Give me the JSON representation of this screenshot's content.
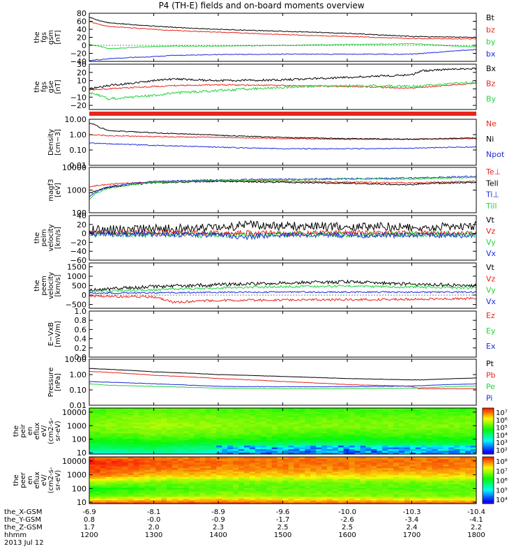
{
  "title": "P4 (TH-E) fields and on-board moments overview",
  "colors": {
    "black": "#000000",
    "red": "#e8261c",
    "green": "#22d43a",
    "blue": "#1c2bdc"
  },
  "date_label": "2013 Jul 12",
  "x_ticks": [
    "1200",
    "1300",
    "1400",
    "1500",
    "1600",
    "1700",
    "1800"
  ],
  "ephemeris": [
    {
      "label": "the_X-GSM",
      "values": [
        "-6.9",
        "-8.1",
        "-8.9",
        "-9.6",
        "-10.0",
        "-10.3",
        "-10.4"
      ]
    },
    {
      "label": "the_Y-GSM",
      "values": [
        "0.8",
        "-0.0",
        "-0.9",
        "-1.7",
        "-2.6",
        "-3.4",
        "-4.1"
      ]
    },
    {
      "label": "the_Z-GSM",
      "values": [
        "1.7",
        "2.0",
        "2.3",
        "2.5",
        "2.5",
        "2.4",
        "2.2"
      ]
    },
    {
      "label": "hhmm",
      "values": [
        "1200",
        "1300",
        "1400",
        "1500",
        "1600",
        "1700",
        "1800"
      ]
    }
  ],
  "chart_data": [
    {
      "type": "line",
      "ylabel_lines": [
        "the",
        "fgs",
        "gsm",
        "[nT]"
      ],
      "ylim": [
        -40,
        80
      ],
      "scale": "linear",
      "yticks": [
        "80",
        "60",
        "40",
        "20",
        "0",
        "−20",
        "−40"
      ],
      "ytick_vals": [
        80,
        60,
        40,
        20,
        0,
        -20,
        -40
      ],
      "series": [
        {
          "name": "Bt",
          "color": "black",
          "x": [
            1200,
            1215,
            1230,
            1300,
            1330,
            1400,
            1500,
            1600,
            1700,
            1800
          ],
          "values": [
            70,
            62,
            56,
            48,
            45,
            40,
            35,
            30,
            22,
            20
          ]
        },
        {
          "name": "bz",
          "color": "red",
          "x": [
            1200,
            1215,
            1230,
            1300,
            1330,
            1400,
            1500,
            1600,
            1700,
            1800
          ],
          "values": [
            60,
            52,
            47,
            40,
            37,
            33,
            27,
            22,
            17,
            16
          ]
        },
        {
          "name": "by",
          "color": "green",
          "x": [
            1200,
            1215,
            1230,
            1300,
            1330,
            1400,
            1500,
            1600,
            1700,
            1800
          ],
          "values": [
            2,
            -2,
            -8,
            -3,
            -2,
            -2,
            0,
            2,
            4,
            -4
          ]
        },
        {
          "name": "bx",
          "color": "blue",
          "x": [
            1200,
            1215,
            1230,
            1300,
            1330,
            1400,
            1500,
            1600,
            1700,
            1800
          ],
          "values": [
            -38,
            -36,
            -33,
            -28,
            -25,
            -23,
            -22,
            -22,
            -22,
            -10
          ]
        }
      ]
    },
    {
      "type": "line",
      "ylabel_lines": [
        "the",
        "fgs",
        "gse",
        "[nT]"
      ],
      "ylim": [
        -25,
        30
      ],
      "scale": "linear",
      "yticks": [
        "30",
        "20",
        "10",
        "0",
        "−10",
        "−20"
      ],
      "ytick_vals": [
        30,
        20,
        10,
        0,
        -10,
        -20
      ],
      "series": [
        {
          "name": "Bx",
          "color": "black",
          "x": [
            1200,
            1230,
            1300,
            1330,
            1400,
            1500,
            1600,
            1700,
            1715,
            1800
          ],
          "values": [
            0,
            4,
            10,
            12,
            10,
            11,
            14,
            17,
            22,
            25
          ]
        },
        {
          "name": "Bz",
          "color": "red",
          "x": [
            1200,
            1230,
            1300,
            1330,
            1400,
            1500,
            1600,
            1700,
            1800
          ],
          "values": [
            -1,
            0,
            3,
            4,
            5,
            4,
            3,
            1,
            7
          ]
        },
        {
          "name": "By",
          "color": "green",
          "x": [
            1200,
            1215,
            1230,
            1300,
            1330,
            1400,
            1500,
            1600,
            1700,
            1800
          ],
          "values": [
            -5,
            -8,
            -12,
            -8,
            -5,
            -2,
            2,
            4,
            3,
            8
          ]
        }
      ]
    },
    {
      "type": "line",
      "ylabel_lines": [
        "Density",
        "[cm−3]"
      ],
      "ylim": [
        0.01,
        10
      ],
      "scale": "log",
      "yticks": [
        "10.00",
        "1.00",
        "0.10",
        "0.01"
      ],
      "ytick_vals": [
        10,
        1,
        0.1,
        0.01
      ],
      "series": [
        {
          "name": "Ne",
          "color": "red",
          "x": [
            1200,
            1230,
            1300,
            1400,
            1500,
            1600,
            1700,
            1800
          ],
          "values": [
            1.0,
            0.85,
            0.75,
            0.65,
            0.55,
            0.5,
            0.5,
            0.55
          ]
        },
        {
          "name": "Ni",
          "color": "black",
          "x": [
            1200,
            1215,
            1230,
            1300,
            1400,
            1500,
            1600,
            1700,
            1800
          ],
          "values": [
            6,
            3,
            1.8,
            1.3,
            0.9,
            0.65,
            0.55,
            0.5,
            0.6
          ]
        },
        {
          "name": "Npot",
          "color": "blue",
          "x": [
            1200,
            1230,
            1300,
            1400,
            1500,
            1600,
            1700,
            1800
          ],
          "values": [
            0.28,
            0.25,
            0.2,
            0.15,
            0.12,
            0.12,
            0.13,
            0.16
          ]
        }
      ]
    },
    {
      "type": "line",
      "ylabel_lines": [
        "magf3",
        "[eV]"
      ],
      "ylim": [
        100,
        10000
      ],
      "scale": "log",
      "yticks": [
        "10000",
        "1000",
        "100"
      ],
      "ytick_vals": [
        10000,
        1000,
        100
      ],
      "series": [
        {
          "name": "Te⊥",
          "color": "red",
          "x": [
            1200,
            1230,
            1300,
            1400,
            1500,
            1600,
            1700,
            1800
          ],
          "values": [
            1400,
            1800,
            2300,
            2600,
            2500,
            2200,
            2100,
            2400
          ]
        },
        {
          "name": "Tell",
          "color": "black",
          "x": [
            1200,
            1230,
            1300,
            1400,
            1500,
            1600,
            1700,
            1715,
            1800
          ],
          "values": [
            700,
            1300,
            2100,
            2400,
            2200,
            2000,
            1700,
            1900,
            2200
          ]
        },
        {
          "name": "Ti⊥",
          "color": "blue",
          "x": [
            1200,
            1230,
            1300,
            1400,
            1500,
            1600,
            1700,
            1800
          ],
          "values": [
            500,
            1400,
            2400,
            2800,
            3000,
            3200,
            3400,
            4000
          ]
        },
        {
          "name": "Till",
          "color": "green",
          "x": [
            1200,
            1230,
            1300,
            1400,
            1500,
            1600,
            1700,
            1800
          ],
          "values": [
            400,
            1200,
            2200,
            2600,
            2800,
            3000,
            3100,
            3600
          ]
        }
      ]
    },
    {
      "type": "line",
      "ylabel_lines": [
        "the",
        "peim",
        "velocity",
        "[km/s]"
      ],
      "ylim": [
        -60,
        40
      ],
      "scale": "linear",
      "yticks": [
        "40",
        "20",
        "0",
        "−20",
        "−40",
        "−60"
      ],
      "ytick_vals": [
        40,
        20,
        0,
        -20,
        -40,
        -60
      ],
      "series": [
        {
          "name": "Vt",
          "color": "black",
          "x": [
            1200,
            1300,
            1400,
            1445,
            1500,
            1600,
            1700,
            1800
          ],
          "values": [
            8,
            10,
            12,
            20,
            16,
            16,
            14,
            16
          ]
        },
        {
          "name": "Vz",
          "color": "red",
          "x": [
            1200,
            1300,
            1400,
            1500,
            1600,
            1700,
            1800
          ],
          "values": [
            0,
            2,
            1,
            0,
            1,
            0,
            0
          ]
        },
        {
          "name": "Vy",
          "color": "green",
          "x": [
            1200,
            1300,
            1400,
            1500,
            1600,
            1700,
            1800
          ],
          "values": [
            -2,
            -3,
            -4,
            -2,
            -3,
            -2,
            -3
          ]
        },
        {
          "name": "Vx",
          "color": "blue",
          "x": [
            1200,
            1300,
            1400,
            1445,
            1500,
            1600,
            1700,
            1800
          ],
          "values": [
            -1,
            -2,
            -3,
            -8,
            -3,
            -4,
            -4,
            -5
          ]
        }
      ]
    },
    {
      "type": "line",
      "ylabel_lines": [
        "the",
        "peem",
        "velocity",
        "[km/s]"
      ],
      "ylim": [
        -700,
        1700
      ],
      "scale": "linear",
      "yticks": [
        "1500",
        "1000",
        "500",
        "0",
        "−500"
      ],
      "ytick_vals": [
        1500,
        1000,
        500,
        0,
        -500
      ],
      "series": [
        {
          "name": "Vt",
          "color": "black",
          "x": [
            1200,
            1230,
            1300,
            1400,
            1500,
            1600,
            1700,
            1800
          ],
          "values": [
            280,
            320,
            450,
            550,
            650,
            700,
            580,
            500
          ]
        },
        {
          "name": "Vz",
          "color": "red",
          "x": [
            1200,
            1300,
            1330,
            1400,
            1500,
            1600,
            1700,
            1800
          ],
          "values": [
            -60,
            -100,
            -380,
            -280,
            -260,
            -240,
            -220,
            -180
          ]
        },
        {
          "name": "Vy",
          "color": "green",
          "x": [
            1200,
            1300,
            1400,
            1500,
            1600,
            1700,
            1800
          ],
          "values": [
            180,
            280,
            380,
            450,
            480,
            420,
            380
          ]
        },
        {
          "name": "Vx",
          "color": "blue",
          "x": [
            1200,
            1300,
            1400,
            1500,
            1600,
            1700,
            1800
          ],
          "values": [
            100,
            120,
            150,
            160,
            160,
            150,
            150
          ]
        }
      ]
    },
    {
      "type": "line",
      "ylabel_lines": [
        "E−VxB",
        "[mV/m]"
      ],
      "ylim": [
        0,
        1
      ],
      "scale": "linear",
      "yticks": [
        "1.0",
        "0.8",
        "0.6",
        "0.4",
        "0.2",
        "0.0"
      ],
      "ytick_vals": [
        1,
        0.8,
        0.6,
        0.4,
        0.2,
        0
      ],
      "series": [
        {
          "name": "Ez",
          "color": "red",
          "x": [],
          "values": []
        },
        {
          "name": "Ey",
          "color": "green",
          "x": [],
          "values": []
        },
        {
          "name": "Ex",
          "color": "blue",
          "x": [],
          "values": []
        }
      ]
    },
    {
      "type": "line",
      "ylabel_lines": [
        "Pressure",
        "[nPa]"
      ],
      "ylim": [
        0.01,
        10
      ],
      "scale": "log",
      "yticks": [
        "10.00",
        "1.00",
        "0.10",
        "0.01"
      ],
      "ytick_vals": [
        10,
        1,
        0.1,
        0.01
      ],
      "series": [
        {
          "name": "Pt",
          "color": "black",
          "x": [
            1200,
            1300,
            1400,
            1500,
            1600,
            1700,
            1715,
            1800
          ],
          "values": [
            2.5,
            1.5,
            1.0,
            0.75,
            0.55,
            0.45,
            0.45,
            0.6
          ]
        },
        {
          "name": "Pb",
          "color": "red",
          "x": [
            1200,
            1300,
            1400,
            1500,
            1600,
            1700,
            1710,
            1800
          ],
          "values": [
            1.6,
            0.9,
            0.55,
            0.35,
            0.22,
            0.17,
            0.12,
            0.12
          ]
        },
        {
          "name": "Pe",
          "color": "green",
          "x": [
            1200,
            1230,
            1300,
            1400,
            1500,
            1600,
            1700,
            1800
          ],
          "values": [
            0.25,
            0.2,
            0.17,
            0.13,
            0.12,
            0.12,
            0.13,
            0.18
          ]
        },
        {
          "name": "Pi",
          "color": "blue",
          "x": [
            1200,
            1230,
            1300,
            1400,
            1500,
            1600,
            1700,
            1800
          ],
          "values": [
            0.35,
            0.32,
            0.25,
            0.17,
            0.16,
            0.16,
            0.18,
            0.25
          ]
        }
      ]
    },
    {
      "type": "heatmap",
      "ylabel_lines": [
        "the",
        "peir",
        "en",
        "eflux",
        "eV/",
        "(cm2-s-",
        "sr-eV)"
      ],
      "ylim": [
        8,
        20000
      ],
      "scale": "log",
      "yticks": [
        "10000",
        "1000",
        "100",
        "10"
      ],
      "ytick_vals": [
        10000,
        1000,
        100,
        10
      ],
      "x": [
        1200,
        1300,
        1400,
        1500,
        1600,
        1700,
        1800
      ],
      "y": [
        10,
        30,
        100,
        300,
        1000,
        3000,
        10000,
        20000
      ],
      "z_log": [
        [
          3.5,
          3.8,
          3.6,
          3.5,
          3.4,
          3.5,
          3.5
        ],
        [
          4.2,
          4.3,
          4.0,
          3.9,
          3.8,
          4.0,
          4.0
        ],
        [
          4.6,
          4.8,
          4.7,
          4.6,
          4.5,
          4.6,
          4.6
        ],
        [
          5.0,
          5.2,
          5.1,
          5.0,
          4.9,
          5.0,
          5.0
        ],
        [
          5.2,
          5.4,
          5.3,
          5.2,
          5.2,
          5.2,
          5.2
        ],
        [
          5.1,
          5.3,
          5.2,
          5.1,
          5.1,
          5.1,
          5.1
        ],
        [
          4.9,
          5.1,
          5.0,
          4.9,
          4.9,
          4.9,
          4.9
        ],
        [
          4.8,
          5.0,
          4.9,
          4.8,
          4.8,
          4.8,
          4.8
        ]
      ],
      "colorbar": {
        "labels": [
          "10⁷",
          "10⁶",
          "10⁵",
          "10⁴",
          "10³",
          "10²"
        ]
      }
    },
    {
      "type": "heatmap",
      "ylabel_lines": [
        "the",
        "peer",
        "en",
        "eflux",
        "eV/",
        "(cm2-s-",
        "sr-eV)"
      ],
      "ylim": [
        8,
        20000
      ],
      "scale": "log",
      "yticks": [
        "10000",
        "1000",
        "100",
        "10"
      ],
      "ytick_vals": [
        10000,
        1000,
        100,
        10
      ],
      "x": [
        1200,
        1300,
        1400,
        1500,
        1600,
        1700,
        1800
      ],
      "y": [
        10,
        30,
        100,
        300,
        1000,
        3000,
        10000,
        20000
      ],
      "z_log": [
        [
          7.6,
          7.7,
          7.7,
          7.6,
          7.6,
          7.6,
          7.6
        ],
        [
          6.4,
          6.6,
          6.7,
          6.6,
          6.6,
          6.5,
          6.5
        ],
        [
          6.0,
          6.3,
          6.4,
          6.4,
          6.4,
          6.4,
          6.4
        ],
        [
          6.8,
          6.5,
          6.5,
          6.5,
          6.5,
          6.5,
          6.5
        ],
        [
          7.6,
          7.3,
          7.2,
          7.2,
          7.2,
          7.2,
          7.2
        ],
        [
          7.8,
          7.6,
          7.5,
          7.5,
          7.5,
          7.5,
          7.5
        ],
        [
          7.9,
          7.7,
          7.6,
          7.6,
          7.6,
          7.6,
          7.6
        ],
        [
          7.6,
          7.5,
          7.5,
          7.5,
          7.5,
          7.5,
          7.5
        ]
      ],
      "colorbar": {
        "labels": [
          "10⁸",
          "10⁷",
          "10⁶",
          "10⁵",
          "10⁴"
        ]
      }
    }
  ]
}
